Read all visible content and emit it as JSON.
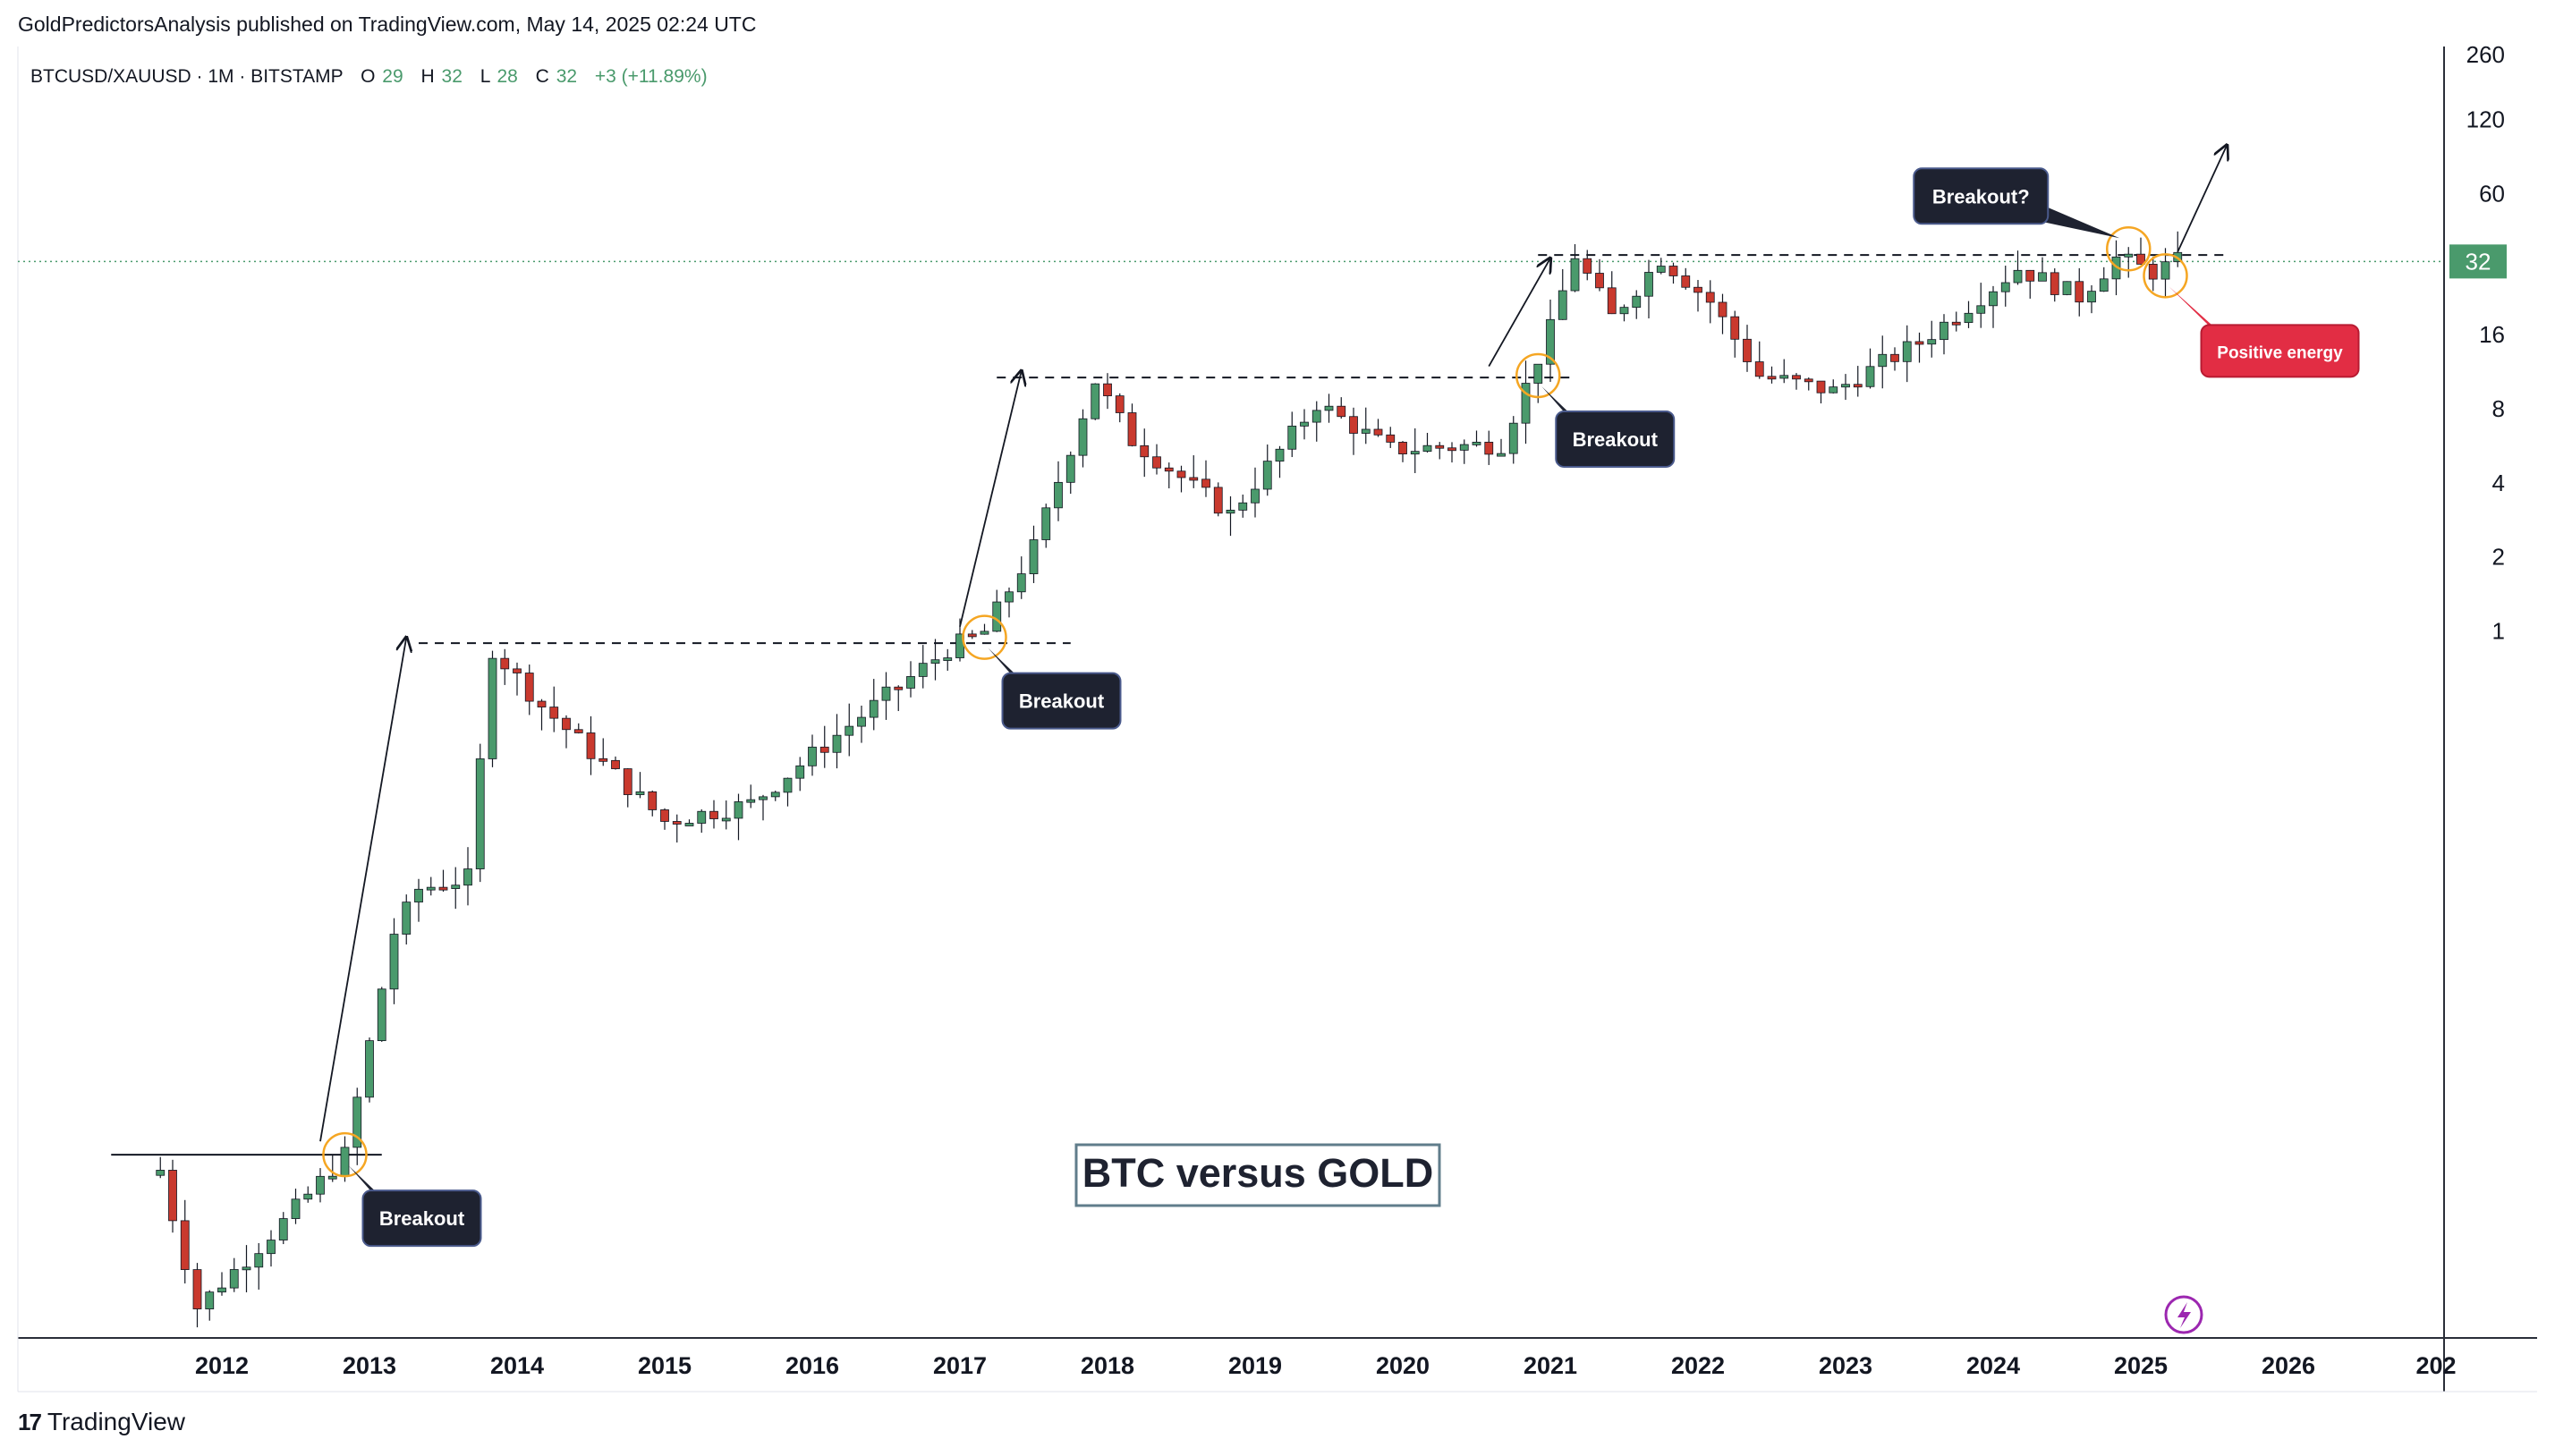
{
  "header": {
    "published": "GoldPredictorsAnalysis published on TradingView.com, May 14, 2025 02:24 UTC",
    "symbol_line": "BTCUSD/XAUUSD · 1M · BITSTAMP",
    "ohlc": [
      {
        "label": "O",
        "value": "29"
      },
      {
        "label": "H",
        "value": "32"
      },
      {
        "label": "L",
        "value": "28"
      },
      {
        "label": "C",
        "value": "32"
      }
    ],
    "change": "+3 (+11.89%)"
  },
  "footer": {
    "brand": "TradingView",
    "brand_icon": "tradingview-logo-icon"
  },
  "colors": {
    "up": "#4a9a6c",
    "down": "#c9392e",
    "highlight_circle": "#f5a623",
    "callout_dark": "#1e2230",
    "callout_red": "#e22d44",
    "price_label": "#4a9a6c",
    "lightning": "#9c27b0"
  },
  "chart_data": {
    "type": "candlestick",
    "title": "BTC versus GOLD",
    "y_scale": "log",
    "ylim": [
      0.0011,
      290
    ],
    "y_ticks": [
      {
        "label": "260",
        "value": 260
      },
      {
        "label": "120",
        "value": 120
      },
      {
        "label": "60",
        "value": 60
      },
      {
        "label": "32",
        "value": 32
      },
      {
        "label": "16",
        "value": 16
      },
      {
        "label": "8",
        "value": 8
      },
      {
        "label": "4",
        "value": 4
      },
      {
        "label": "2",
        "value": 2
      },
      {
        "label": "1",
        "value": 1
      }
    ],
    "last_price": 32,
    "x_ticks": [
      "2012",
      "2013",
      "2014",
      "2015",
      "2016",
      "2017",
      "2018",
      "2019",
      "2020",
      "2021",
      "2022",
      "2023",
      "2024",
      "2025",
      "2026",
      "202"
    ],
    "x_range": [
      "2011-01",
      "2027-06"
    ],
    "anchors": [
      {
        "date": "2011-08",
        "value": 0.0065
      },
      {
        "date": "2011-11",
        "value": 0.0018
      },
      {
        "date": "2012-06",
        "value": 0.004
      },
      {
        "date": "2012-11",
        "value": 0.0075
      },
      {
        "date": "2013-03",
        "value": 0.06
      },
      {
        "date": "2013-05",
        "value": 0.09
      },
      {
        "date": "2013-09",
        "value": 0.1
      },
      {
        "date": "2013-11",
        "value": 0.85
      },
      {
        "date": "2014-03",
        "value": 0.5
      },
      {
        "date": "2015-01",
        "value": 0.17
      },
      {
        "date": "2015-08",
        "value": 0.2
      },
      {
        "date": "2016-06",
        "value": 0.5
      },
      {
        "date": "2016-12",
        "value": 0.85
      },
      {
        "date": "2017-03",
        "value": 1.0
      },
      {
        "date": "2017-07",
        "value": 2.2
      },
      {
        "date": "2017-12",
        "value": 10.5
      },
      {
        "date": "2018-03",
        "value": 6.0
      },
      {
        "date": "2018-11",
        "value": 3.0
      },
      {
        "date": "2019-06",
        "value": 8.5
      },
      {
        "date": "2019-12",
        "value": 5.5
      },
      {
        "date": "2020-09",
        "value": 5.8
      },
      {
        "date": "2021-01",
        "value": 17
      },
      {
        "date": "2021-03",
        "value": 34
      },
      {
        "date": "2021-06",
        "value": 19
      },
      {
        "date": "2021-10",
        "value": 33
      },
      {
        "date": "2022-02",
        "value": 22
      },
      {
        "date": "2022-06",
        "value": 11
      },
      {
        "date": "2022-12",
        "value": 9.5
      },
      {
        "date": "2023-07",
        "value": 15
      },
      {
        "date": "2024-03",
        "value": 30
      },
      {
        "date": "2024-08",
        "value": 23
      },
      {
        "date": "2024-11",
        "value": 33
      },
      {
        "date": "2025-02",
        "value": 29
      },
      {
        "date": "2025-04",
        "value": 32
      }
    ],
    "resistance_lines": [
      {
        "from": "2011-04",
        "to": "2013-02",
        "value": 0.0075,
        "style": "solid"
      },
      {
        "from": "2013-05",
        "to": "2017-10",
        "value": 0.9,
        "style": "dashed"
      },
      {
        "from": "2017-04",
        "to": "2021-03",
        "value": 10.8,
        "style": "dashed"
      },
      {
        "from": "2020-12",
        "to": "2025-08",
        "value": 34,
        "style": "dashed"
      }
    ],
    "annotations": [
      {
        "kind": "callout",
        "text": "Breakout",
        "date": "2012-11",
        "value": 0.0075
      },
      {
        "kind": "callout",
        "text": "Breakout",
        "date": "2017-03",
        "value": 0.95
      },
      {
        "kind": "callout",
        "text": "Breakout",
        "date": "2020-12",
        "value": 11
      },
      {
        "kind": "callout",
        "text": "Breakout?",
        "date": "2024-12",
        "value": 36
      },
      {
        "kind": "callout_red",
        "text": "Positive energy",
        "date": "2025-03",
        "value": 28
      }
    ]
  }
}
